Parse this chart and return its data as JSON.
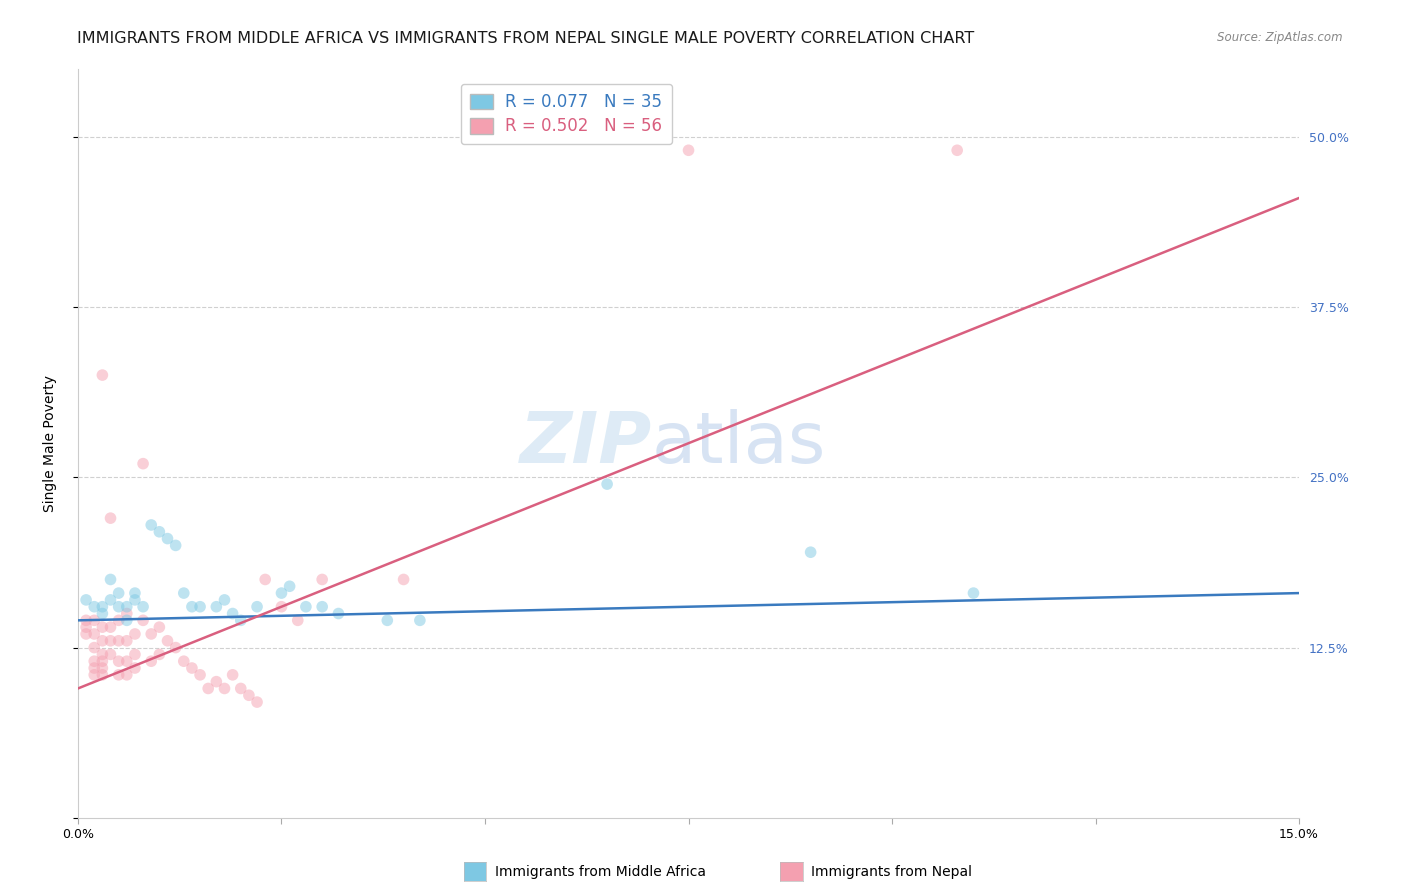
{
  "title": "IMMIGRANTS FROM MIDDLE AFRICA VS IMMIGRANTS FROM NEPAL SINGLE MALE POVERTY CORRELATION CHART",
  "source": "Source: ZipAtlas.com",
  "ylabel_label": "Single Male Poverty",
  "xlim": [
    0.0,
    0.15
  ],
  "ylim": [
    0.0,
    0.55
  ],
  "x_ticks": [
    0.0,
    0.025,
    0.05,
    0.075,
    0.1,
    0.125,
    0.15
  ],
  "x_tick_labels": [
    "0.0%",
    "",
    "",
    "",
    "",
    "",
    "15.0%"
  ],
  "y_ticks": [
    0.0,
    0.125,
    0.25,
    0.375,
    0.5
  ],
  "y_tick_labels": [
    "",
    "12.5%",
    "25.0%",
    "37.5%",
    "50.0%"
  ],
  "legend_label_blue": "Immigrants from Middle Africa",
  "legend_label_pink": "Immigrants from Nepal",
  "legend_R_blue": "R = 0.077",
  "legend_N_blue": "N = 35",
  "legend_R_pink": "R = 0.502",
  "legend_N_pink": "N = 56",
  "watermark_zip": "ZIP",
  "watermark_atlas": "atlas",
  "blue_scatter": [
    [
      0.001,
      0.16
    ],
    [
      0.002,
      0.155
    ],
    [
      0.003,
      0.15
    ],
    [
      0.003,
      0.155
    ],
    [
      0.004,
      0.16
    ],
    [
      0.004,
      0.175
    ],
    [
      0.005,
      0.155
    ],
    [
      0.005,
      0.165
    ],
    [
      0.006,
      0.145
    ],
    [
      0.006,
      0.155
    ],
    [
      0.007,
      0.16
    ],
    [
      0.007,
      0.165
    ],
    [
      0.008,
      0.155
    ],
    [
      0.009,
      0.215
    ],
    [
      0.01,
      0.21
    ],
    [
      0.011,
      0.205
    ],
    [
      0.012,
      0.2
    ],
    [
      0.013,
      0.165
    ],
    [
      0.014,
      0.155
    ],
    [
      0.015,
      0.155
    ],
    [
      0.017,
      0.155
    ],
    [
      0.018,
      0.16
    ],
    [
      0.019,
      0.15
    ],
    [
      0.02,
      0.145
    ],
    [
      0.022,
      0.155
    ],
    [
      0.025,
      0.165
    ],
    [
      0.026,
      0.17
    ],
    [
      0.028,
      0.155
    ],
    [
      0.03,
      0.155
    ],
    [
      0.032,
      0.15
    ],
    [
      0.038,
      0.145
    ],
    [
      0.042,
      0.145
    ],
    [
      0.065,
      0.245
    ],
    [
      0.09,
      0.195
    ],
    [
      0.11,
      0.165
    ]
  ],
  "pink_scatter": [
    [
      0.001,
      0.145
    ],
    [
      0.001,
      0.14
    ],
    [
      0.001,
      0.135
    ],
    [
      0.002,
      0.145
    ],
    [
      0.002,
      0.135
    ],
    [
      0.002,
      0.125
    ],
    [
      0.002,
      0.115
    ],
    [
      0.002,
      0.11
    ],
    [
      0.002,
      0.105
    ],
    [
      0.003,
      0.14
    ],
    [
      0.003,
      0.13
    ],
    [
      0.003,
      0.12
    ],
    [
      0.003,
      0.115
    ],
    [
      0.003,
      0.11
    ],
    [
      0.003,
      0.105
    ],
    [
      0.003,
      0.325
    ],
    [
      0.004,
      0.14
    ],
    [
      0.004,
      0.13
    ],
    [
      0.004,
      0.12
    ],
    [
      0.004,
      0.22
    ],
    [
      0.005,
      0.145
    ],
    [
      0.005,
      0.13
    ],
    [
      0.005,
      0.115
    ],
    [
      0.005,
      0.105
    ],
    [
      0.006,
      0.15
    ],
    [
      0.006,
      0.13
    ],
    [
      0.006,
      0.115
    ],
    [
      0.006,
      0.105
    ],
    [
      0.007,
      0.135
    ],
    [
      0.007,
      0.12
    ],
    [
      0.007,
      0.11
    ],
    [
      0.008,
      0.26
    ],
    [
      0.008,
      0.145
    ],
    [
      0.009,
      0.135
    ],
    [
      0.009,
      0.115
    ],
    [
      0.01,
      0.14
    ],
    [
      0.01,
      0.12
    ],
    [
      0.011,
      0.13
    ],
    [
      0.012,
      0.125
    ],
    [
      0.013,
      0.115
    ],
    [
      0.014,
      0.11
    ],
    [
      0.015,
      0.105
    ],
    [
      0.016,
      0.095
    ],
    [
      0.017,
      0.1
    ],
    [
      0.018,
      0.095
    ],
    [
      0.019,
      0.105
    ],
    [
      0.02,
      0.095
    ],
    [
      0.021,
      0.09
    ],
    [
      0.022,
      0.085
    ],
    [
      0.023,
      0.175
    ],
    [
      0.025,
      0.155
    ],
    [
      0.027,
      0.145
    ],
    [
      0.03,
      0.175
    ],
    [
      0.04,
      0.175
    ],
    [
      0.075,
      0.49
    ],
    [
      0.108,
      0.49
    ]
  ],
  "blue_line_x": [
    0.0,
    0.15
  ],
  "blue_line_y": [
    0.145,
    0.165
  ],
  "pink_line_x": [
    0.0,
    0.15
  ],
  "pink_line_y": [
    0.095,
    0.455
  ],
  "scatter_size": 70,
  "scatter_alpha": 0.5,
  "blue_color": "#7ec8e3",
  "pink_color": "#f4a0b0",
  "blue_line_color": "#3a7abf",
  "pink_line_color": "#d95f7f",
  "blue_text_color": "#3a7abf",
  "pink_text_color": "#d95f7f",
  "bg_color": "#ffffff",
  "grid_color": "#d0d0d0",
  "title_fontsize": 11.5,
  "axis_label_fontsize": 10,
  "tick_fontsize": 9,
  "right_tick_color": "#4472c4"
}
